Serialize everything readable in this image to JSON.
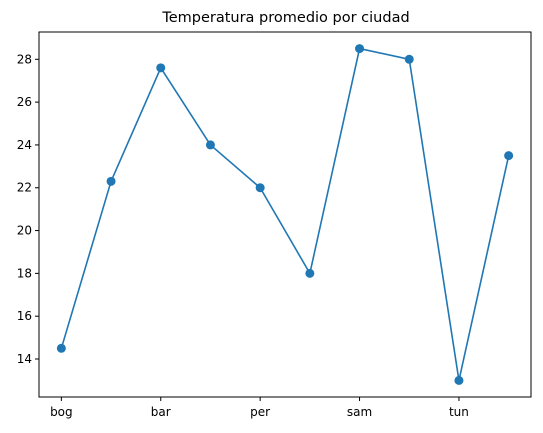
{
  "chart_data": {
    "type": "line",
    "title": "Temperatura promedio por ciudad",
    "xlabel": "",
    "ylabel": "",
    "x": [
      0,
      1,
      2,
      3,
      4,
      5,
      6,
      7,
      8,
      9
    ],
    "values": [
      14.5,
      22.3,
      27.6,
      24.0,
      22.0,
      18.0,
      28.5,
      28.0,
      13.0,
      23.5
    ],
    "xticks": [
      {
        "x": 0,
        "label": "bog"
      },
      {
        "x": 2,
        "label": "bar"
      },
      {
        "x": 4,
        "label": "per"
      },
      {
        "x": 6,
        "label": "sam"
      },
      {
        "x": 8,
        "label": "tun"
      }
    ],
    "yticks": [
      14,
      16,
      18,
      20,
      22,
      24,
      26,
      28
    ],
    "xlim": [
      -0.45,
      9.45
    ],
    "ylim": [
      12.225,
      29.275
    ],
    "grid": false,
    "color": "#1f77b4",
    "marker": "circle"
  }
}
